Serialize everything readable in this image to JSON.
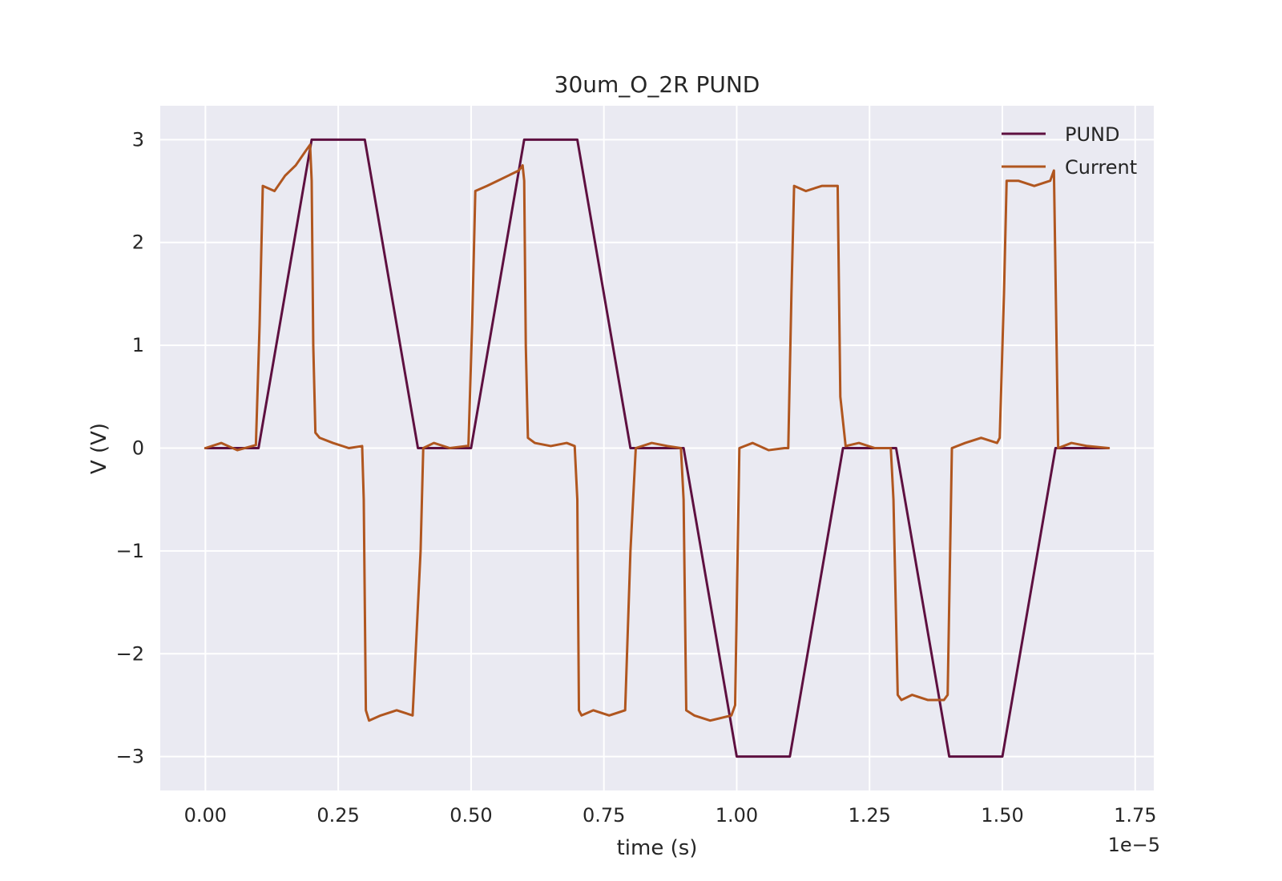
{
  "chart_data": {
    "type": "line",
    "title": "30um_O_2R PUND",
    "xlabel": "time (s)",
    "ylabel": "V (V)",
    "x_offset_label": "1e−5",
    "xlim": [
      -0.085,
      1.785
    ],
    "ylim": [
      -3.33,
      3.33
    ],
    "x_ticks": [
      0,
      0.25,
      0.5,
      0.75,
      1.0,
      1.25,
      1.5,
      1.75
    ],
    "x_tick_labels": [
      "0.00",
      "0.25",
      "0.50",
      "0.75",
      "1.00",
      "1.25",
      "1.50",
      "1.75"
    ],
    "y_ticks": [
      -3,
      -2,
      -1,
      0,
      1,
      2,
      3
    ],
    "y_tick_labels": [
      "−3",
      "−2",
      "−1",
      "0",
      "1",
      "2",
      "3"
    ],
    "grid": true,
    "legend_position": "top-right",
    "background": "#eaeaf2",
    "series": [
      {
        "name": "PUND",
        "color": "#5e1040",
        "x": [
          0.0,
          0.1,
          0.2,
          0.3,
          0.4,
          0.5,
          0.6,
          0.7,
          0.8,
          0.9,
          1.0,
          1.1,
          1.2,
          1.3,
          1.4,
          1.5,
          1.6,
          1.7
        ],
        "values": [
          0,
          0,
          3,
          3,
          0,
          0,
          3,
          3,
          0,
          0,
          -3,
          -3,
          0,
          0,
          -3,
          -3,
          0,
          0
        ]
      },
      {
        "name": "Current",
        "color": "#b0561f",
        "x": [
          0.0,
          0.03,
          0.06,
          0.095,
          0.102,
          0.108,
          0.13,
          0.15,
          0.17,
          0.19,
          0.197,
          0.2,
          0.203,
          0.207,
          0.215,
          0.24,
          0.27,
          0.295,
          0.298,
          0.302,
          0.308,
          0.33,
          0.36,
          0.39,
          0.405,
          0.41,
          0.43,
          0.46,
          0.49,
          0.495,
          0.502,
          0.508,
          0.53,
          0.55,
          0.57,
          0.59,
          0.597,
          0.6,
          0.603,
          0.607,
          0.62,
          0.65,
          0.68,
          0.695,
          0.7,
          0.703,
          0.708,
          0.73,
          0.76,
          0.79,
          0.8,
          0.81,
          0.84,
          0.87,
          0.895,
          0.9,
          0.905,
          0.92,
          0.95,
          0.99,
          0.997,
          1.005,
          1.03,
          1.06,
          1.09,
          1.097,
          1.103,
          1.108,
          1.13,
          1.16,
          1.19,
          1.195,
          1.205,
          1.23,
          1.26,
          1.29,
          1.295,
          1.303,
          1.31,
          1.33,
          1.36,
          1.39,
          1.397,
          1.405,
          1.43,
          1.46,
          1.49,
          1.495,
          1.503,
          1.508,
          1.53,
          1.56,
          1.59,
          1.597,
          1.605,
          1.63,
          1.66,
          1.7
        ],
        "values": [
          0.0,
          0.05,
          -0.02,
          0.03,
          1.2,
          2.55,
          2.5,
          2.65,
          2.75,
          2.9,
          2.95,
          2.6,
          1.0,
          0.15,
          0.1,
          0.05,
          0.0,
          0.02,
          -0.5,
          -2.55,
          -2.65,
          -2.6,
          -2.55,
          -2.6,
          -1.0,
          0.0,
          0.05,
          0.0,
          0.02,
          0.02,
          1.2,
          2.5,
          2.55,
          2.6,
          2.65,
          2.7,
          2.75,
          2.6,
          1.0,
          0.1,
          0.05,
          0.02,
          0.05,
          0.02,
          -0.5,
          -2.55,
          -2.6,
          -2.55,
          -2.6,
          -2.55,
          -1.0,
          0.0,
          0.05,
          0.02,
          0.0,
          -0.5,
          -2.55,
          -2.6,
          -2.65,
          -2.6,
          -2.5,
          0.0,
          0.05,
          -0.02,
          0.0,
          0.0,
          1.5,
          2.55,
          2.5,
          2.55,
          2.55,
          0.5,
          0.02,
          0.05,
          0.0,
          0.0,
          -0.5,
          -2.4,
          -2.45,
          -2.4,
          -2.45,
          -2.45,
          -2.4,
          0.0,
          0.05,
          0.1,
          0.05,
          0.1,
          1.5,
          2.6,
          2.6,
          2.55,
          2.6,
          2.7,
          0.0,
          0.05,
          0.02,
          0.0
        ]
      }
    ]
  }
}
